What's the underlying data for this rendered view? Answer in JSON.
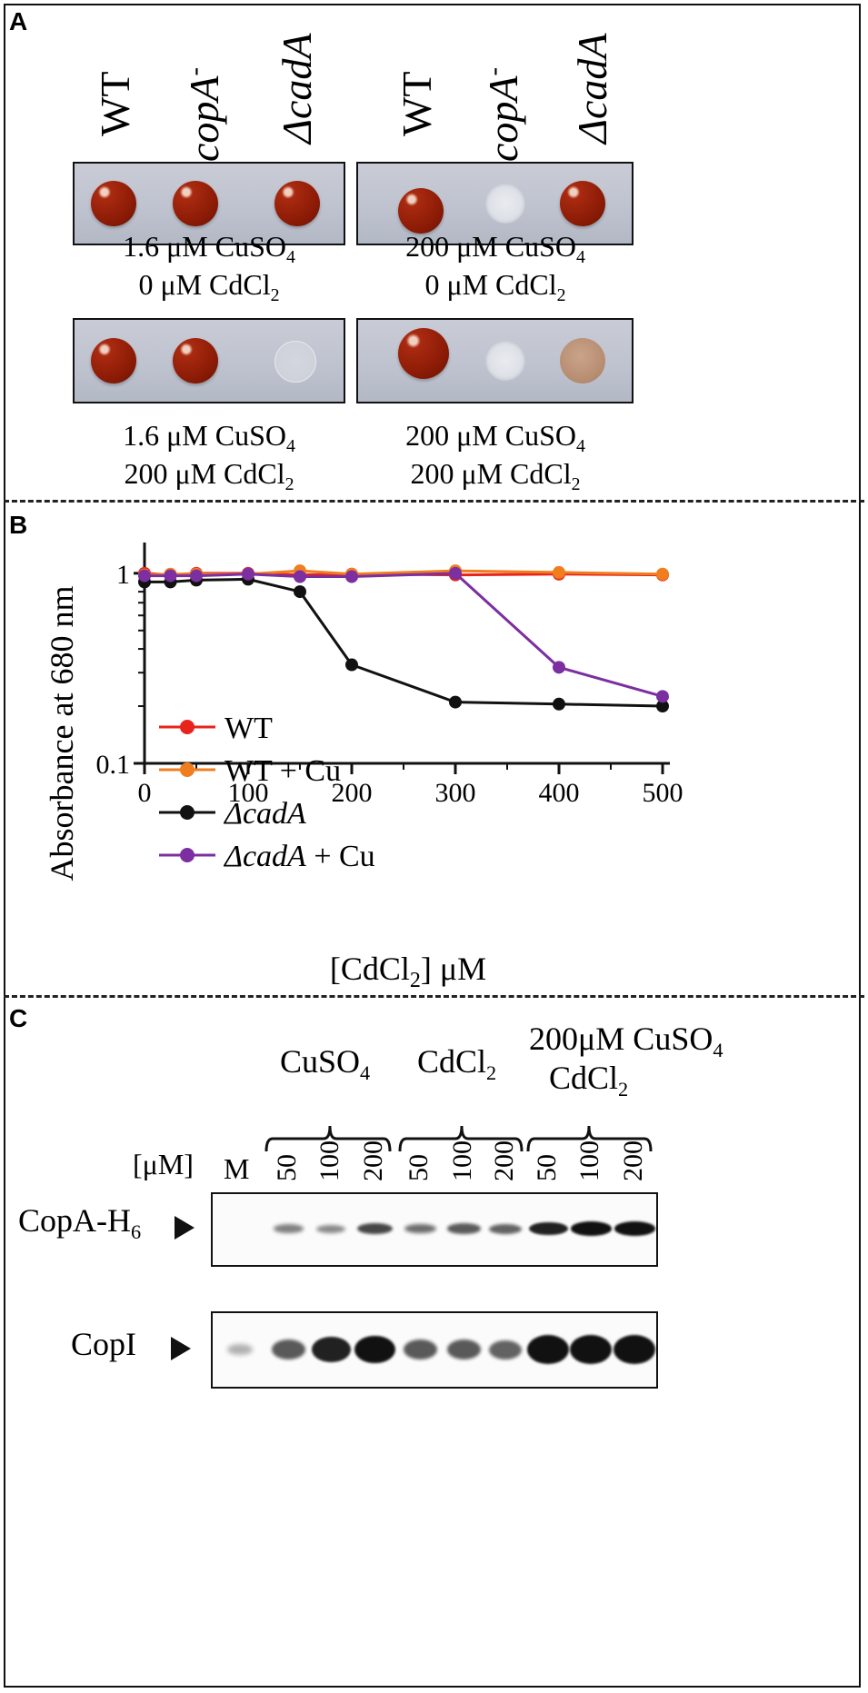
{
  "panels": {
    "a": "A",
    "b": "B",
    "c": "C"
  },
  "panel_a": {
    "strains": [
      "WT",
      "copA",
      "ΔcadA"
    ],
    "copA_superscript": "-",
    "plates": [
      {
        "cu": "1.6 μM CuSO",
        "cd": "0 μM CdCl",
        "growth": [
          "red",
          "red",
          "red"
        ]
      },
      {
        "cu": "200 μM CuSO",
        "cd": "0 μM CdCl",
        "growth": [
          "red",
          "pale",
          "red"
        ]
      },
      {
        "cu": "1.6 μM CuSO",
        "cd": "200 μM CdCl",
        "growth": [
          "red",
          "red",
          "ghost"
        ]
      },
      {
        "cu": "200 μM CuSO",
        "cd": "200 μM CdCl",
        "growth": [
          "red",
          "pale",
          "tan"
        ]
      }
    ],
    "sub_cu": "4",
    "sub_cd": "2"
  },
  "chart_data": {
    "type": "line",
    "title": "",
    "xlabel": "[CdCl2] μM",
    "xlabel_main": "[CdCl",
    "xlabel_sub": "2",
    "xlabel_tail": "] μM",
    "ylabel": "Absorbance at 680 nm",
    "yscale": "log",
    "ylim": [
      0.1,
      1.3
    ],
    "xlim": [
      0,
      500
    ],
    "x_ticks": [
      0,
      100,
      200,
      300,
      400,
      500
    ],
    "y_tick_labels": [
      "1",
      "0.1"
    ],
    "x": [
      0,
      25,
      50,
      100,
      150,
      200,
      300,
      400,
      500
    ],
    "series": [
      {
        "name": "WT",
        "color": "#e8231c",
        "values": [
          1.0,
          0.98,
          1.0,
          1.0,
          0.98,
          0.99,
          0.98,
          0.99,
          0.98
        ]
      },
      {
        "name": "WT + Cu",
        "color": "#f07d1e",
        "values": [
          0.98,
          0.99,
          0.99,
          0.99,
          1.03,
          0.99,
          1.03,
          1.01,
          0.99
        ]
      },
      {
        "name": "ΔcadA",
        "color": "#111111",
        "values": [
          0.9,
          0.9,
          0.92,
          0.93,
          0.8,
          0.33,
          0.21,
          0.205,
          0.2
        ]
      },
      {
        "name": "ΔcadA + Cu",
        "color": "#7b2fa0",
        "values": [
          0.97,
          0.97,
          0.97,
          0.99,
          0.96,
          0.96,
          1.0,
          0.32,
          0.225
        ]
      }
    ],
    "legend_labels": [
      "WT",
      "WT + Cu",
      "ΔcadA",
      " + Cu"
    ],
    "legend_italic_prefix": "ΔcadA",
    "legend_position": "center-left"
  },
  "panel_c": {
    "group_labels": {
      "cu": "CuSO",
      "cu_sub": "4",
      "cd": "CdCl",
      "cd_sub": "2",
      "combo_top": "200μM CuSO",
      "combo_top_sub": "4",
      "combo_bottom": "CdCl",
      "combo_bottom_sub": "2"
    },
    "unit_label": "[μM]",
    "marker_label": "M",
    "lanes": [
      "50",
      "100",
      "200",
      "50",
      "100",
      "200",
      "50",
      "100",
      "200"
    ],
    "blots": [
      {
        "label": "CopA-H",
        "label_sub": "6",
        "intensity": [
          0,
          0.35,
          0.3,
          0.65,
          0.45,
          0.55,
          0.5,
          0.85,
          0.95,
          0.95
        ]
      },
      {
        "label": "CopI",
        "label_sub": "",
        "intensity": [
          0.08,
          0.55,
          0.85,
          0.95,
          0.55,
          0.55,
          0.5,
          1,
          1,
          1
        ]
      }
    ]
  }
}
